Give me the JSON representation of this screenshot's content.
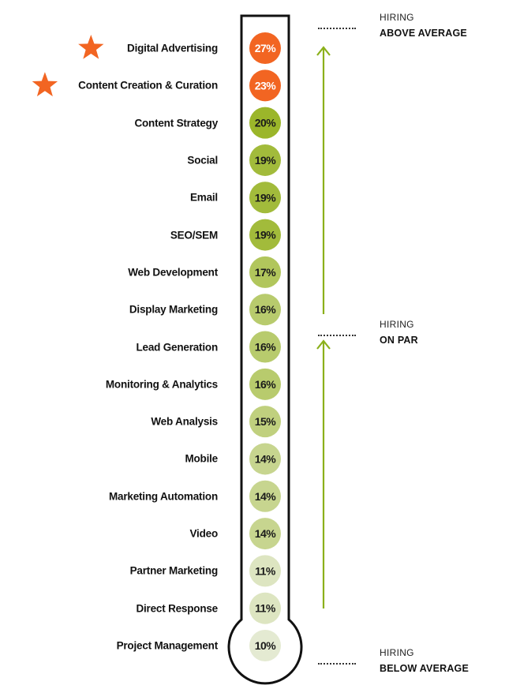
{
  "chart_data": {
    "type": "thermometer",
    "unit": "%",
    "categories": [
      {
        "label": "Digital Advertising",
        "value": 27,
        "starred": true
      },
      {
        "label": "Content Creation & Curation",
        "value": 23,
        "starred": true
      },
      {
        "label": "Content Strategy",
        "value": 20
      },
      {
        "label": "Social",
        "value": 19
      },
      {
        "label": "Email",
        "value": 19
      },
      {
        "label": "SEO/SEM",
        "value": 19
      },
      {
        "label": "Web Development",
        "value": 17
      },
      {
        "label": "Display Marketing",
        "value": 16
      },
      {
        "label": "Lead Generation",
        "value": 16
      },
      {
        "label": "Monitoring & Analytics",
        "value": 16
      },
      {
        "label": "Web Analysis",
        "value": 15
      },
      {
        "label": "Mobile",
        "value": 14
      },
      {
        "label": "Marketing Automation",
        "value": 14
      },
      {
        "label": "Video",
        "value": 14
      },
      {
        "label": "Partner Marketing",
        "value": 11
      },
      {
        "label": "Direct Response",
        "value": 11
      },
      {
        "label": "Project Management",
        "value": 10
      }
    ],
    "zones": [
      {
        "title": "HIRING",
        "subtitle": "ABOVE AVERAGE"
      },
      {
        "title": "HIRING",
        "subtitle": "ON PAR"
      },
      {
        "title": "HIRING",
        "subtitle": "BELOW AVERAGE"
      }
    ],
    "colors": {
      "highlight": "#f26522",
      "outline": "#111111",
      "arrow": "#8bb01a",
      "star": "#f26522"
    }
  }
}
